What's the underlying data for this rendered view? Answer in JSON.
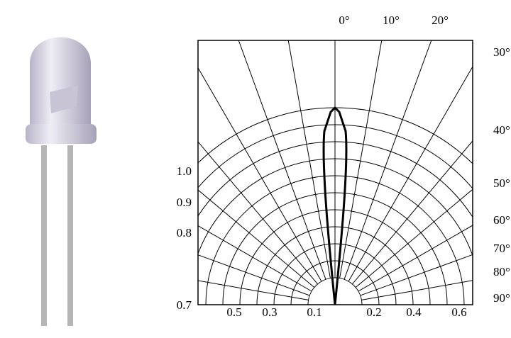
{
  "angle_labels": [
    "0°",
    "10°",
    "20°",
    "30°",
    "40°",
    "50°",
    "60°",
    "70°",
    "80°",
    "90°"
  ],
  "left_labels": [
    "1.0",
    "0.9",
    "0.8",
    "0.7"
  ],
  "bottom_labels": [
    "0.5",
    "0.3",
    "0.1",
    "0.2",
    "0.4",
    "0.6"
  ]
}
